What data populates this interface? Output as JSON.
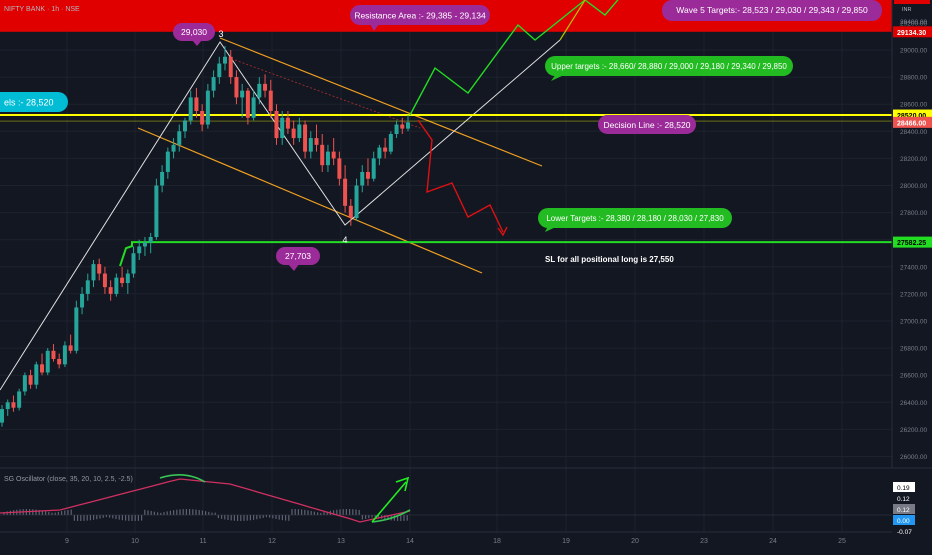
{
  "symbol_header": "NIFTY BANK · 1h · NSE",
  "colors": {
    "background": "#131722",
    "up_candle": "#26a69a",
    "down_candle": "#ef5350",
    "resistance_band": "#e00000",
    "decision_line": "#ffff00",
    "support_line": "#22dd22",
    "channel": "#f0a020",
    "bullish_path": "#22dd22",
    "bearish_path": "#dd1111"
  },
  "annotations": {
    "resistance_area": "Resistance Area :- 29,385 - 29,134",
    "wave5_targets": "Wave 5 Targets:- 28,523 / 29,030 / 29,343 / 29,850",
    "upper_targets": "Upper targets :- 28,660/ 28,880 / 29,000 / 29,180 / 29,340 / 29,850",
    "decision_line": "Decision Line :- 28,520",
    "lower_targets": "Lower Targets :- 28,380 / 28,180 / 28,030 / 27,830",
    "left_label": "els :- 28,520",
    "peak_bubble": "29,030",
    "trough_bubble": "27,703",
    "wave3": "3",
    "wave4": "4",
    "sl_note": "SL for all positional long is 27,550"
  },
  "price_axis": {
    "currency": "INR",
    "top_clip": "29400.00",
    "ticks": [
      "29200.00",
      "29000.00",
      "28800.00",
      "28600.00",
      "28400.00",
      "28200.00",
      "28000.00",
      "27800.00",
      "27600.00",
      "27400.00",
      "27200.00",
      "27000.00",
      "26800.00",
      "26600.00",
      "26400.00",
      "26200.00",
      "26000.00"
    ],
    "badges": [
      {
        "label": "29134.30",
        "price": 29134.3,
        "color": "#e00000",
        "text": "#ffffff"
      },
      {
        "label": "28520.00",
        "price": 28520,
        "color": "#ffff00",
        "text": "#000000"
      },
      {
        "label": "28466.00",
        "price": 28466,
        "color": "#ef5350",
        "text": "#ffffff"
      },
      {
        "label": "27582.25",
        "price": 27582.25,
        "color": "#22dd22",
        "text": "#000000"
      }
    ]
  },
  "time_axis": {
    "ticks": [
      "9",
      "10",
      "11",
      "12",
      "13",
      "14",
      "18",
      "19",
      "20",
      "23",
      "24",
      "25"
    ]
  },
  "oscillator": {
    "title": "SG Oscillator (close, 35, 20, 10, 2.5, -2.5)",
    "badges": [
      {
        "label": "0.19",
        "color": "#ffffff",
        "text": "#000000"
      },
      {
        "label": "0.12",
        "color": "#131722",
        "text": "#ffffff"
      },
      {
        "label": "0.12",
        "color": "#787b86",
        "text": "#ffffff"
      },
      {
        "label": "0.00",
        "color": "#2196f3",
        "text": "#ffffff"
      },
      {
        "label": "-0.07",
        "color": "#131722",
        "text": "#ffffff"
      }
    ]
  },
  "chart_data": {
    "type": "candlestick",
    "series": [
      {
        "name": "NIFTY BANK",
        "ohlc": [
          [
            26250,
            26380,
            26220,
            26350
          ],
          [
            26350,
            26420,
            26300,
            26400
          ],
          [
            26400,
            26450,
            26330,
            26360
          ],
          [
            26360,
            26500,
            26340,
            26480
          ],
          [
            26480,
            26620,
            26450,
            26600
          ],
          [
            26600,
            26640,
            26500,
            26530
          ],
          [
            26530,
            26700,
            26500,
            26680
          ],
          [
            26680,
            26760,
            26600,
            26620
          ],
          [
            26620,
            26800,
            26600,
            26780
          ],
          [
            26780,
            26830,
            26700,
            26720
          ],
          [
            26720,
            26760,
            26650,
            26680
          ],
          [
            26680,
            26850,
            26660,
            26820
          ],
          [
            26820,
            26900,
            26760,
            26780
          ],
          [
            26780,
            27150,
            26760,
            27100
          ],
          [
            27100,
            27250,
            27050,
            27200
          ],
          [
            27200,
            27350,
            27150,
            27300
          ],
          [
            27300,
            27450,
            27250,
            27420
          ],
          [
            27420,
            27460,
            27300,
            27350
          ],
          [
            27350,
            27400,
            27200,
            27250
          ],
          [
            27250,
            27300,
            27150,
            27200
          ],
          [
            27200,
            27350,
            27180,
            27320
          ],
          [
            27320,
            27400,
            27250,
            27280
          ],
          [
            27280,
            27380,
            27200,
            27350
          ],
          [
            27350,
            27550,
            27320,
            27500
          ],
          [
            27500,
            27600,
            27450,
            27550
          ],
          [
            27550,
            27620,
            27480,
            27580
          ],
          [
            27580,
            27650,
            27500,
            27620
          ],
          [
            27620,
            28050,
            27600,
            28000
          ],
          [
            28000,
            28150,
            27950,
            28100
          ],
          [
            28100,
            28280,
            28050,
            28250
          ],
          [
            28250,
            28350,
            28200,
            28300
          ],
          [
            28300,
            28450,
            28250,
            28400
          ],
          [
            28400,
            28500,
            28350,
            28480
          ],
          [
            28480,
            28700,
            28450,
            28650
          ],
          [
            28650,
            28720,
            28500,
            28550
          ],
          [
            28550,
            28600,
            28400,
            28450
          ],
          [
            28450,
            28750,
            28420,
            28700
          ],
          [
            28700,
            28850,
            28650,
            28800
          ],
          [
            28800,
            28950,
            28750,
            28900
          ],
          [
            28900,
            29030,
            28850,
            28950
          ],
          [
            28950,
            29000,
            28750,
            28800
          ],
          [
            28800,
            28850,
            28600,
            28650
          ],
          [
            28650,
            28750,
            28500,
            28700
          ],
          [
            28700,
            28720,
            28450,
            28500
          ],
          [
            28500,
            28700,
            28480,
            28650
          ],
          [
            28650,
            28800,
            28600,
            28750
          ],
          [
            28750,
            28820,
            28650,
            28700
          ],
          [
            28700,
            28780,
            28500,
            28550
          ],
          [
            28550,
            28600,
            28300,
            28350
          ],
          [
            28350,
            28550,
            28300,
            28500
          ],
          [
            28500,
            28550,
            28380,
            28420
          ],
          [
            28420,
            28480,
            28300,
            28350
          ],
          [
            28350,
            28500,
            28320,
            28450
          ],
          [
            28450,
            28480,
            28200,
            28250
          ],
          [
            28250,
            28400,
            28200,
            28350
          ],
          [
            28350,
            28450,
            28250,
            28300
          ],
          [
            28300,
            28380,
            28100,
            28150
          ],
          [
            28150,
            28300,
            28100,
            28250
          ],
          [
            28250,
            28350,
            28150,
            28200
          ],
          [
            28200,
            28250,
            28000,
            28050
          ],
          [
            28050,
            28150,
            27800,
            27850
          ],
          [
            27850,
            27900,
            27703,
            27760
          ],
          [
            27760,
            28050,
            27740,
            28000
          ],
          [
            28000,
            28150,
            27950,
            28100
          ],
          [
            28100,
            28200,
            28000,
            28050
          ],
          [
            28050,
            28250,
            28030,
            28200
          ],
          [
            28200,
            28300,
            28150,
            28280
          ],
          [
            28280,
            28350,
            28200,
            28250
          ],
          [
            28250,
            28400,
            28230,
            28380
          ],
          [
            28380,
            28480,
            28350,
            28450
          ],
          [
            28450,
            28500,
            28380,
            28420
          ],
          [
            28420,
            28520,
            28400,
            28466
          ]
        ]
      }
    ],
    "x_range_days": [
      "9",
      "25"
    ],
    "y_range": [
      25900,
      29400
    ],
    "levels": {
      "resistance_area": [
        29134,
        29385
      ],
      "decision_line": 28520,
      "support": 27582.25,
      "stop_loss": 27550
    },
    "wave_points": {
      "3": 29030,
      "4": 27703
    },
    "grid": true
  }
}
